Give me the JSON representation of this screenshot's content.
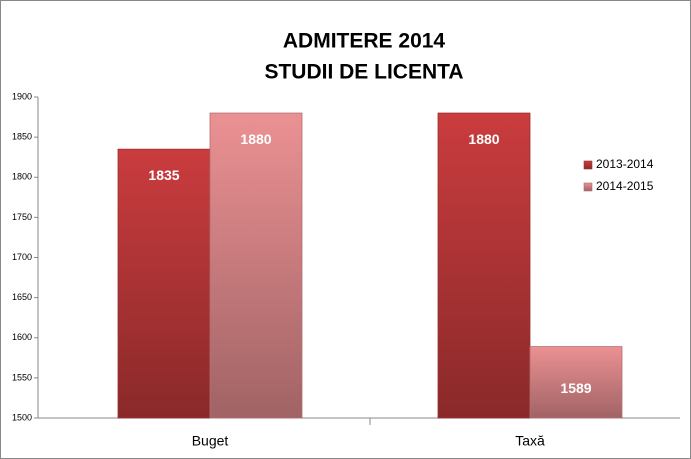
{
  "chart_data": {
    "type": "bar",
    "title": "ADMITERE 2014",
    "subtitle": "STUDII DE LICENTA",
    "categories": [
      "Buget",
      "Taxă"
    ],
    "series": [
      {
        "name": "2013-2014",
        "color": "#c0393b",
        "values": [
          1835,
          1880
        ]
      },
      {
        "name": "2014-2015",
        "color": "#e08a8c",
        "values": [
          1880,
          1589
        ]
      }
    ],
    "ylim": [
      1500,
      1900
    ],
    "yticks": [
      1500,
      1550,
      1600,
      1650,
      1700,
      1750,
      1800,
      1850,
      1900
    ],
    "grid": false,
    "legend": "right"
  }
}
